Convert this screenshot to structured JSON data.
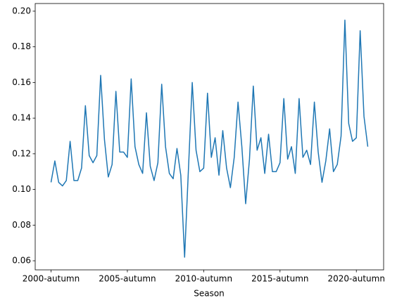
{
  "chart_data": {
    "type": "line",
    "xlabel": "Season",
    "categories": [
      "2000-autumn",
      null,
      null,
      null,
      null,
      null,
      null,
      null,
      null,
      null,
      null,
      null,
      null,
      null,
      null,
      null,
      null,
      null,
      null,
      null,
      "2005-autumn",
      null,
      null,
      null,
      null,
      null,
      null,
      null,
      null,
      null,
      null,
      null,
      null,
      null,
      null,
      null,
      null,
      null,
      null,
      null,
      "2010-autumn",
      null,
      null,
      null,
      null,
      null,
      null,
      null,
      null,
      null,
      null,
      null,
      null,
      null,
      null,
      null,
      null,
      null,
      null,
      null,
      "2015-autumn",
      null,
      null,
      null,
      null,
      null,
      null,
      null,
      null,
      null,
      null,
      null,
      null,
      null,
      null,
      null,
      null,
      null,
      null,
      null,
      "2020-autumn",
      null,
      null,
      null
    ],
    "series": [
      {
        "color": "#1f77b4",
        "values": [
          0.104,
          0.116,
          0.104,
          0.102,
          0.105,
          0.127,
          0.105,
          0.105,
          0.112,
          0.147,
          0.119,
          0.115,
          0.119,
          0.164,
          0.128,
          0.107,
          0.114,
          0.155,
          0.121,
          0.121,
          0.118,
          0.162,
          0.124,
          0.114,
          0.109,
          0.143,
          0.113,
          0.105,
          0.115,
          0.159,
          0.124,
          0.109,
          0.106,
          0.123,
          0.108,
          0.062,
          0.111,
          0.16,
          0.122,
          0.11,
          0.112,
          0.154,
          0.118,
          0.129,
          0.108,
          0.133,
          0.112,
          0.101,
          0.118,
          0.149,
          0.124,
          0.092,
          0.117,
          0.158,
          0.122,
          0.129,
          0.109,
          0.131,
          0.11,
          0.11,
          0.115,
          0.151,
          0.117,
          0.124,
          0.109,
          0.151,
          0.118,
          0.122,
          0.114,
          0.149,
          0.121,
          0.104,
          0.116,
          0.134,
          0.11,
          0.114,
          0.13,
          0.195,
          0.137,
          0.127,
          0.129,
          0.189,
          0.141,
          0.124
        ]
      }
    ],
    "ylim": [
      0.0549,
      0.2043
    ],
    "yticks": [
      0.06,
      0.08,
      {
        "value": 0.1,
        "label": "0.10"
      },
      0.12,
      0.14,
      0.16,
      0.18,
      {
        "value": 0.2,
        "label": "0.20"
      }
    ],
    "grid": false
  }
}
